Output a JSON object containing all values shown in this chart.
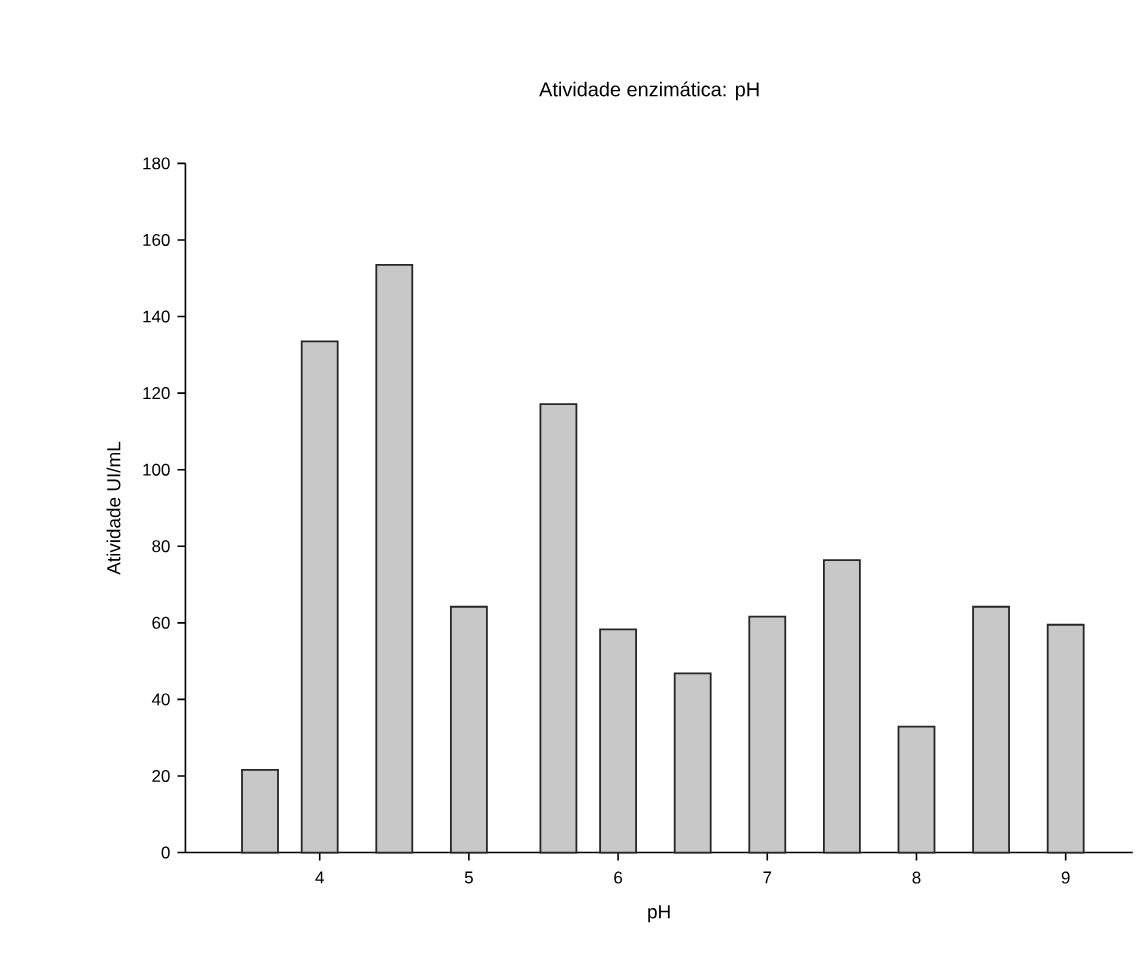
{
  "chart_data": {
    "type": "bar",
    "title": "Atividade enzimática: pH",
    "xlabel": "pH",
    "ylabel": "Atividade UI/mL",
    "x": [
      3.6,
      4,
      4.5,
      5,
      5.6,
      6,
      6.5,
      7,
      7.5,
      8,
      8.5,
      9
    ],
    "values": [
      21.6,
      133.5,
      153.5,
      64.2,
      117.1,
      58.3,
      46.8,
      61.6,
      76.4,
      32.9,
      64.2,
      59.5
    ],
    "color": "#c8c8c8",
    "xlim": [
      3.1,
      9.45
    ],
    "ylim": [
      0,
      180
    ],
    "xticks": [
      4,
      5,
      6,
      7,
      8,
      9
    ],
    "yticks": [
      0,
      20,
      40,
      60,
      80,
      100,
      120,
      140,
      160,
      180
    ],
    "grid": false
  }
}
